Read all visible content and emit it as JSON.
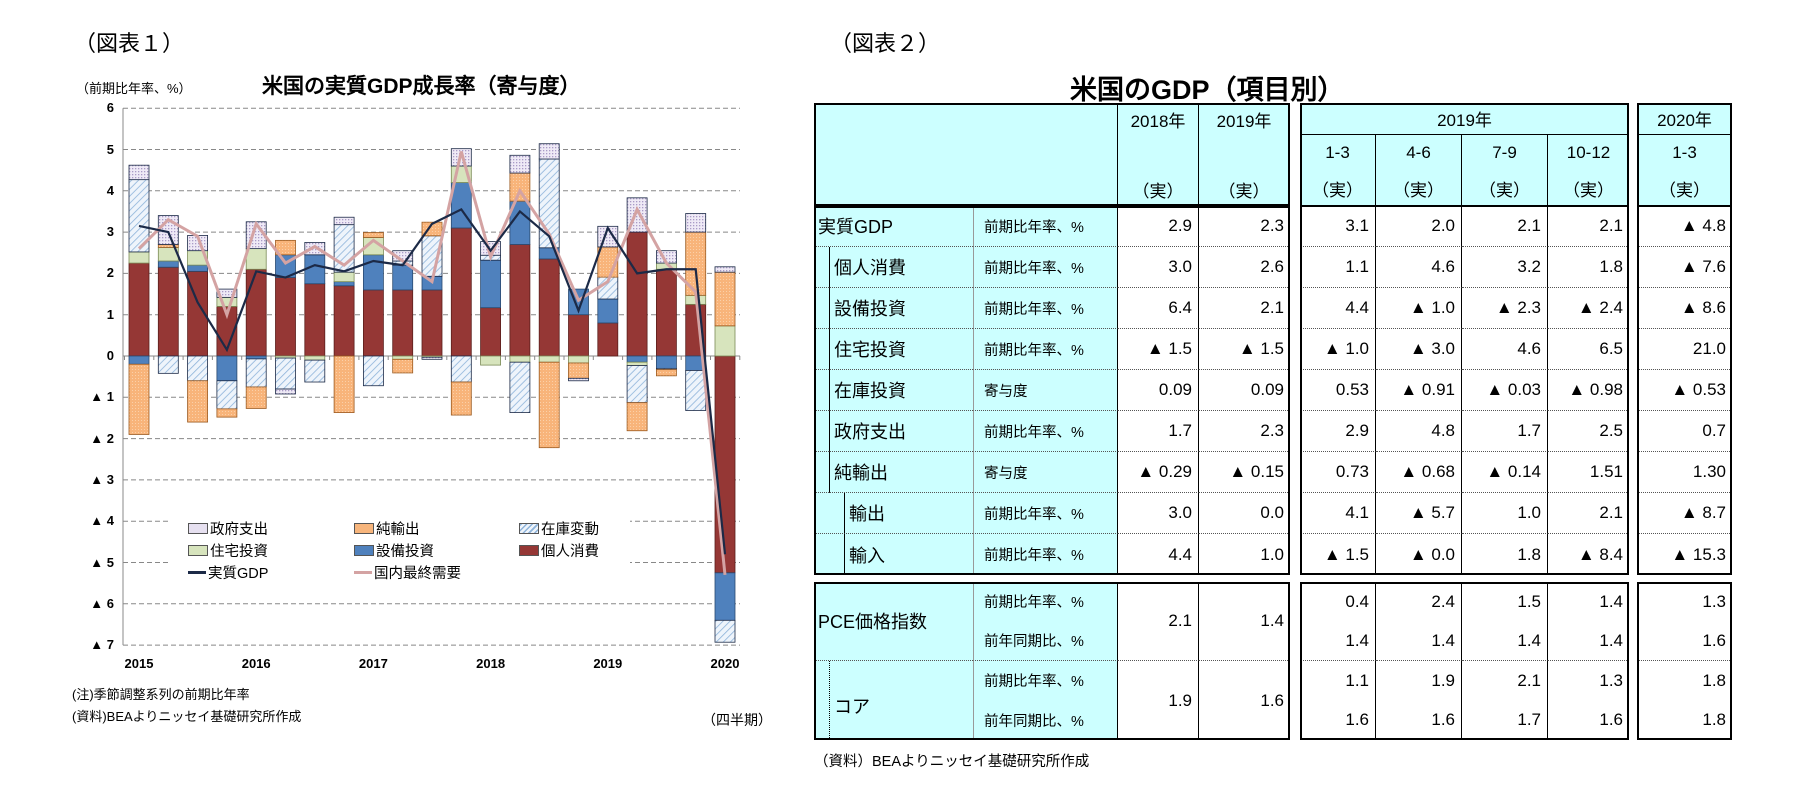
{
  "figure1": {
    "label": "（図表１）",
    "title": "米国の実質GDP成長率（寄与度）",
    "unit_label": "（前期比年率、%）",
    "note": "(注)季節調整系列の前期比年率",
    "source": "(資料)BEAよりニッセイ基礎研究所作成",
    "period_label": "（四半期）"
  },
  "chart_data": {
    "type": "bar",
    "stacked": true,
    "title": "米国の実質GDP成長率（寄与度）",
    "ylabel": "（前期比年率、%）",
    "xlabel": "（四半期）",
    "ylim": [
      -7,
      6
    ],
    "yticks": [
      6,
      5,
      4,
      3,
      2,
      1,
      0,
      -1,
      -2,
      -3,
      -4,
      -5,
      -6,
      -7
    ],
    "ytick_labels": [
      "6",
      "5",
      "4",
      "3",
      "2",
      "1",
      "0",
      "▲ 1",
      "▲ 2",
      "▲ 3",
      "▲ 4",
      "▲ 5",
      "▲ 6",
      "▲ 7"
    ],
    "x": [
      "2015Q1",
      "2015Q2",
      "2015Q3",
      "2015Q4",
      "2016Q1",
      "2016Q2",
      "2016Q3",
      "2016Q4",
      "2017Q1",
      "2017Q2",
      "2017Q3",
      "2017Q4",
      "2018Q1",
      "2018Q2",
      "2018Q3",
      "2018Q4",
      "2019Q1",
      "2019Q2",
      "2019Q3",
      "2019Q4",
      "2020Q1"
    ],
    "xtick_labels": [
      {
        "index": 0,
        "label": "2015"
      },
      {
        "index": 4,
        "label": "2016"
      },
      {
        "index": 8,
        "label": "2017"
      },
      {
        "index": 12,
        "label": "2018"
      },
      {
        "index": 16,
        "label": "2019"
      },
      {
        "index": 20,
        "label": "2020"
      }
    ],
    "grid": true,
    "legend_placement": "bottom-center",
    "series": [
      {
        "name": "個人消費",
        "kind": "bar",
        "key": "cons",
        "color": "#953735",
        "values": [
          2.25,
          2.15,
          2.05,
          1.2,
          2.1,
          1.9,
          1.75,
          1.7,
          1.6,
          1.6,
          1.6,
          3.1,
          1.17,
          2.7,
          2.35,
          1.0,
          0.8,
          3.0,
          2.1,
          1.25,
          -5.25
        ]
      },
      {
        "name": "設備投資",
        "kind": "bar",
        "key": "equip",
        "color": "#4f81bd",
        "values": [
          -0.2,
          0.15,
          0.15,
          -0.6,
          -0.07,
          0.55,
          0.7,
          0.1,
          0.85,
          0.6,
          0.33,
          1.1,
          1.15,
          1.05,
          0.27,
          0.62,
          0.58,
          -0.15,
          -0.3,
          -0.35,
          -1.15
        ]
      },
      {
        "name": "住宅投資",
        "kind": "bar",
        "key": "res",
        "color": "#d7e4bd",
        "values": [
          0.27,
          0.33,
          0.35,
          0.22,
          0.5,
          -0.05,
          -0.1,
          0.23,
          0.42,
          -0.08,
          -0.03,
          0.4,
          -0.22,
          -0.15,
          -0.15,
          -0.17,
          0,
          -0.08,
          0.15,
          0.22,
          0.73
        ]
      },
      {
        "name": "在庫変動",
        "kind": "bar",
        "key": "inv",
        "color": "#dce9f6",
        "values": [
          1.75,
          -0.42,
          -0.6,
          -0.68,
          -0.68,
          -0.75,
          -0.53,
          1.15,
          -0.72,
          0.1,
          0.98,
          -0.63,
          0.12,
          -1.22,
          2.15,
          0,
          0.53,
          -0.9,
          -0.03,
          -0.97,
          -0.53
        ]
      },
      {
        "name": "純輸出",
        "kind": "bar",
        "key": "netexp",
        "color": "#f7b57c",
        "values": [
          -1.7,
          0.07,
          -1.0,
          -0.2,
          -0.52,
          0.35,
          0,
          -1.37,
          0.12,
          -0.33,
          0.33,
          -0.8,
          0,
          0.68,
          -2.07,
          -0.37,
          0.73,
          -0.68,
          -0.15,
          1.53,
          1.3
        ]
      },
      {
        "name": "政府支出",
        "kind": "bar",
        "key": "gov",
        "color": "#e6e0f0",
        "values": [
          0.35,
          0.7,
          0.37,
          0.2,
          0.65,
          -0.12,
          0.3,
          0.18,
          0,
          0.25,
          -0.05,
          0.42,
          0.33,
          0.43,
          0.37,
          -0.06,
          0.5,
          0.83,
          0.3,
          0.45,
          0.13
        ]
      },
      {
        "name": "実質GDP",
        "kind": "line",
        "key": "gdp",
        "color": "#1c2a47",
        "values": [
          3.15,
          3.0,
          1.3,
          0.15,
          2.05,
          1.9,
          2.2,
          2.05,
          2.3,
          2.2,
          3.2,
          3.55,
          2.55,
          3.5,
          2.9,
          1.1,
          3.1,
          2.0,
          2.1,
          2.1,
          -4.8
        ]
      },
      {
        "name": "国内最終需要",
        "kind": "line",
        "key": "dfd",
        "color": "#d4a3a3",
        "values": [
          2.6,
          3.3,
          2.9,
          1.0,
          3.2,
          2.25,
          2.65,
          2.2,
          2.8,
          2.3,
          1.8,
          4.95,
          2.4,
          4.0,
          2.95,
          1.35,
          1.8,
          3.55,
          2.25,
          1.55,
          -5.3
        ]
      }
    ],
    "legend_order": [
      "政府支出",
      "純輸出",
      "在庫変動",
      "住宅投資",
      "設備投資",
      "個人消費",
      "実質GDP",
      "国内最終需要"
    ]
  },
  "figure2": {
    "label": "（図表２）",
    "title": "米国のGDP（項目別）",
    "source": "（資料）BEAよりニッセイ基礎研究所作成",
    "header": {
      "y2018": "2018年",
      "y2019": "2019年",
      "qyear": "2019年",
      "y2020": "2020年",
      "quarters": [
        "1-3",
        "4-6",
        "7-9",
        "10-12"
      ],
      "q2020": "1-3",
      "actual": "（実）"
    },
    "rows": [
      {
        "label": "実質GDP",
        "indent": 0,
        "unit": "前期比年率、%",
        "a2018": "2.9",
        "a2019": "2.3",
        "q": [
          "3.1",
          "2.0",
          "2.1",
          "2.1"
        ],
        "q2020": "▲ 4.8"
      },
      {
        "label": "個人消費",
        "indent": 1,
        "unit": "前期比年率、%",
        "a2018": "3.0",
        "a2019": "2.6",
        "q": [
          "1.1",
          "4.6",
          "3.2",
          "1.8"
        ],
        "q2020": "▲ 7.6"
      },
      {
        "label": "設備投資",
        "indent": 1,
        "unit": "前期比年率、%",
        "a2018": "6.4",
        "a2019": "2.1",
        "q": [
          "4.4",
          "▲ 1.0",
          "▲ 2.3",
          "▲ 2.4"
        ],
        "q2020": "▲ 8.6"
      },
      {
        "label": "住宅投資",
        "indent": 1,
        "unit": "前期比年率、%",
        "a2018": "▲ 1.5",
        "a2019": "▲ 1.5",
        "q": [
          "▲ 1.0",
          "▲ 3.0",
          "4.6",
          "6.5"
        ],
        "q2020": "21.0"
      },
      {
        "label": "在庫投資",
        "indent": 1,
        "unit": "寄与度",
        "a2018": "0.09",
        "a2019": "0.09",
        "q": [
          "0.53",
          "▲ 0.91",
          "▲ 0.03",
          "▲ 0.98"
        ],
        "q2020": "▲ 0.53"
      },
      {
        "label": "政府支出",
        "indent": 1,
        "unit": "前期比年率、%",
        "a2018": "1.7",
        "a2019": "2.3",
        "q": [
          "2.9",
          "4.8",
          "1.7",
          "2.5"
        ],
        "q2020": "0.7"
      },
      {
        "label": "純輸出",
        "indent": 1,
        "unit": "寄与度",
        "a2018": "▲ 0.29",
        "a2019": "▲ 0.15",
        "q": [
          "0.73",
          "▲ 0.68",
          "▲ 0.14",
          "1.51"
        ],
        "q2020": "1.30"
      },
      {
        "label": "輸出",
        "indent": 2,
        "unit": "前期比年率、%",
        "a2018": "3.0",
        "a2019": "0.0",
        "q": [
          "4.1",
          "▲ 5.7",
          "1.0",
          "2.1"
        ],
        "q2020": "▲ 8.7"
      },
      {
        "label": "輸入",
        "indent": 2,
        "unit": "前期比年率、%",
        "a2018": "4.4",
        "a2019": "1.0",
        "q": [
          "▲ 1.5",
          "▲ 0.0",
          "1.8",
          "▲ 8.4"
        ],
        "q2020": "▲ 15.3"
      }
    ],
    "price_rows": [
      {
        "label": "PCE価格指数",
        "indent": 0,
        "units": [
          "前期比年率、%",
          "前年同期比、%"
        ],
        "a2018": "2.1",
        "a2019": "1.4",
        "q": [
          [
            "0.4",
            "2.4",
            "1.5",
            "1.4"
          ],
          [
            "1.4",
            "1.4",
            "1.4",
            "1.4"
          ]
        ],
        "q2020": [
          "1.3",
          "1.6"
        ]
      },
      {
        "label": "コア",
        "indent": 1,
        "units": [
          "前期比年率、%",
          "前年同期比、%"
        ],
        "a2018": "1.9",
        "a2019": "1.6",
        "q": [
          [
            "1.1",
            "1.9",
            "2.1",
            "1.3"
          ],
          [
            "1.6",
            "1.6",
            "1.7",
            "1.6"
          ]
        ],
        "q2020": [
          "1.8",
          "1.8"
        ]
      }
    ]
  }
}
